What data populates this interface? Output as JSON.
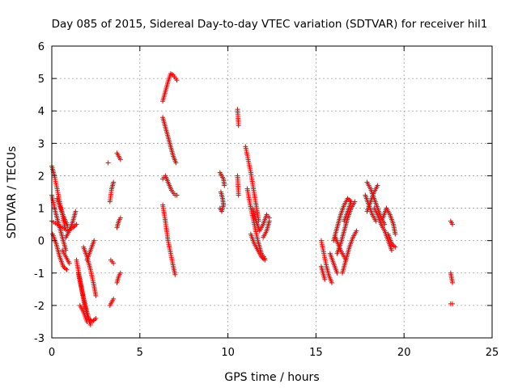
{
  "chart_data": {
    "type": "scatter",
    "title": "Day 085 of 2015, Sidereal Day-to-day VTEC variation (SDTVAR) for receiver hil1",
    "xlabel": "GPS time / hours",
    "ylabel": "SDTVAR / TECUs",
    "xlim": [
      0,
      25
    ],
    "ylim": [
      -3,
      6
    ],
    "xticks": [
      0,
      5,
      10,
      15,
      20,
      25
    ],
    "yticks": [
      -3,
      -2,
      -1,
      0,
      1,
      2,
      3,
      4,
      5,
      6
    ],
    "grid": true,
    "marker": "+",
    "color": "#ff0000",
    "segments": [
      [
        [
          0.0,
          2.3
        ],
        [
          0.15,
          2.0
        ],
        [
          0.3,
          1.6
        ],
        [
          0.45,
          1.2
        ],
        [
          0.6,
          0.8
        ],
        [
          0.75,
          0.4
        ]
      ],
      [
        [
          0.0,
          1.4
        ],
        [
          0.2,
          0.9
        ],
        [
          0.4,
          0.5
        ],
        [
          0.6,
          0.1
        ],
        [
          0.8,
          -0.3
        ]
      ],
      [
        [
          0.0,
          0.6
        ],
        [
          0.3,
          0.5
        ],
        [
          0.6,
          0.4
        ],
        [
          0.9,
          0.3
        ],
        [
          1.2,
          0.4
        ],
        [
          1.4,
          0.5
        ]
      ],
      [
        [
          0.05,
          0.2
        ],
        [
          0.25,
          -0.1
        ],
        [
          0.45,
          -0.5
        ],
        [
          0.65,
          -0.8
        ],
        [
          0.85,
          -0.9
        ]
      ],
      [
        [
          0.3,
          1.3
        ],
        [
          0.5,
          1.0
        ],
        [
          0.7,
          0.7
        ],
        [
          0.9,
          0.45
        ]
      ],
      [
        [
          0.8,
          0.1
        ],
        [
          1.0,
          0.3
        ],
        [
          1.2,
          0.6
        ],
        [
          1.35,
          0.9
        ]
      ],
      [
        [
          0.6,
          -0.3
        ],
        [
          0.8,
          -0.5
        ],
        [
          1.0,
          -0.7
        ]
      ],
      [
        [
          1.4,
          -0.6
        ],
        [
          1.6,
          -1.2
        ],
        [
          1.8,
          -1.8
        ],
        [
          2.0,
          -2.3
        ],
        [
          2.2,
          -2.6
        ]
      ],
      [
        [
          1.5,
          -1.0
        ],
        [
          1.7,
          -1.5
        ],
        [
          1.9,
          -2.0
        ],
        [
          2.1,
          -2.4
        ],
        [
          2.3,
          -2.5
        ],
        [
          2.5,
          -2.4
        ]
      ],
      [
        [
          1.6,
          -2.0
        ],
        [
          1.8,
          -2.2
        ],
        [
          2.0,
          -2.5
        ]
      ],
      [
        [
          1.8,
          -0.2
        ],
        [
          2.0,
          -0.5
        ],
        [
          2.2,
          -0.9
        ],
        [
          2.4,
          -1.4
        ],
        [
          2.5,
          -1.7
        ]
      ],
      [
        [
          2.0,
          -0.6
        ],
        [
          2.2,
          -0.3
        ],
        [
          2.4,
          0.0
        ]
      ],
      [
        [
          3.2,
          2.4
        ]
      ],
      [
        [
          3.3,
          1.2
        ],
        [
          3.4,
          1.6
        ],
        [
          3.5,
          1.8
        ]
      ],
      [
        [
          3.35,
          -0.6
        ],
        [
          3.5,
          -0.7
        ]
      ],
      [
        [
          3.3,
          -2.0
        ],
        [
          3.5,
          -1.8
        ]
      ],
      [
        [
          3.7,
          2.7
        ],
        [
          3.8,
          2.6
        ],
        [
          3.9,
          2.5
        ]
      ],
      [
        [
          3.7,
          0.4
        ],
        [
          3.8,
          0.6
        ],
        [
          3.9,
          0.7
        ]
      ],
      [
        [
          3.7,
          -1.3
        ],
        [
          3.8,
          -1.1
        ],
        [
          3.9,
          -1.0
        ]
      ],
      [
        [
          6.3,
          4.3
        ],
        [
          6.45,
          4.6
        ],
        [
          6.6,
          4.9
        ],
        [
          6.75,
          5.15
        ],
        [
          6.9,
          5.1
        ],
        [
          7.1,
          4.95
        ]
      ],
      [
        [
          6.3,
          3.8
        ],
        [
          6.45,
          3.5
        ],
        [
          6.6,
          3.2
        ],
        [
          6.75,
          2.9
        ],
        [
          6.9,
          2.6
        ],
        [
          7.05,
          2.4
        ]
      ],
      [
        [
          6.3,
          1.9
        ],
        [
          6.45,
          2.0
        ],
        [
          6.6,
          1.8
        ],
        [
          6.8,
          1.55
        ],
        [
          7.0,
          1.4
        ],
        [
          7.1,
          1.4
        ]
      ],
      [
        [
          6.3,
          1.1
        ],
        [
          6.45,
          0.6
        ],
        [
          6.6,
          0.0
        ],
        [
          6.75,
          -0.4
        ],
        [
          6.9,
          -0.8
        ],
        [
          7.0,
          -1.05
        ]
      ],
      [
        [
          9.55,
          2.1
        ],
        [
          9.65,
          2.0
        ],
        [
          9.75,
          1.9
        ],
        [
          9.8,
          1.7
        ]
      ],
      [
        [
          9.6,
          1.5
        ],
        [
          9.7,
          1.3
        ],
        [
          9.75,
          1.1
        ]
      ],
      [
        [
          9.55,
          1.0
        ],
        [
          9.65,
          0.9
        ],
        [
          9.75,
          1.1
        ]
      ],
      [
        [
          10.55,
          4.05
        ],
        [
          10.6,
          3.55
        ]
      ],
      [
        [
          10.55,
          2.0
        ],
        [
          10.6,
          1.4
        ]
      ],
      [
        [
          11.0,
          2.9
        ],
        [
          11.15,
          2.5
        ],
        [
          11.3,
          2.1
        ],
        [
          11.45,
          1.6
        ],
        [
          11.6,
          1.1
        ],
        [
          11.75,
          0.6
        ]
      ],
      [
        [
          11.1,
          1.6
        ],
        [
          11.3,
          1.0
        ],
        [
          11.5,
          0.5
        ],
        [
          11.7,
          0.0
        ],
        [
          11.9,
          -0.4
        ],
        [
          12.1,
          -0.55
        ]
      ],
      [
        [
          11.3,
          0.2
        ],
        [
          11.5,
          -0.1
        ],
        [
          11.7,
          -0.3
        ],
        [
          11.9,
          -0.5
        ],
        [
          12.1,
          -0.6
        ]
      ],
      [
        [
          11.4,
          1.0
        ],
        [
          11.6,
          0.6
        ],
        [
          11.8,
          0.3
        ],
        [
          12.0,
          0.5
        ],
        [
          12.2,
          0.8
        ],
        [
          12.35,
          0.7
        ]
      ],
      [
        [
          12.0,
          0.1
        ],
        [
          12.2,
          0.3
        ],
        [
          12.35,
          0.6
        ]
      ],
      [
        [
          15.3,
          0.0
        ],
        [
          15.45,
          -0.4
        ],
        [
          15.6,
          -0.8
        ],
        [
          15.75,
          -1.1
        ],
        [
          15.9,
          -1.3
        ]
      ],
      [
        [
          15.3,
          -0.8
        ],
        [
          15.4,
          -1.0
        ],
        [
          15.5,
          -1.2
        ]
      ],
      [
        [
          15.8,
          -0.4
        ],
        [
          16.0,
          -0.7
        ],
        [
          16.2,
          -1.0
        ]
      ],
      [
        [
          16.0,
          0.0
        ],
        [
          16.2,
          0.4
        ],
        [
          16.4,
          0.8
        ],
        [
          16.6,
          1.1
        ],
        [
          16.8,
          1.3
        ],
        [
          17.0,
          1.2
        ]
      ],
      [
        [
          16.2,
          -0.4
        ],
        [
          16.4,
          -0.1
        ],
        [
          16.6,
          0.3
        ],
        [
          16.8,
          0.7
        ],
        [
          17.0,
          1.0
        ],
        [
          17.2,
          1.2
        ]
      ],
      [
        [
          16.5,
          -1.0
        ],
        [
          16.7,
          -0.6
        ],
        [
          16.9,
          -0.2
        ],
        [
          17.1,
          0.1
        ],
        [
          17.3,
          0.3
        ]
      ],
      [
        [
          16.1,
          0.1
        ],
        [
          16.4,
          -0.3
        ],
        [
          16.7,
          -0.6
        ]
      ],
      [
        [
          16.6,
          0.6
        ],
        [
          16.8,
          0.9
        ],
        [
          17.0,
          1.2
        ]
      ],
      [
        [
          17.9,
          1.8
        ],
        [
          18.1,
          1.6
        ],
        [
          18.3,
          1.3
        ],
        [
          18.5,
          1.0
        ],
        [
          18.7,
          0.7
        ],
        [
          18.9,
          0.5
        ]
      ],
      [
        [
          17.8,
          1.4
        ],
        [
          18.0,
          1.1
        ],
        [
          18.2,
          0.8
        ],
        [
          18.4,
          0.6
        ]
      ],
      [
        [
          18.3,
          1.0
        ],
        [
          18.5,
          0.8
        ],
        [
          18.7,
          0.5
        ],
        [
          18.9,
          0.3
        ],
        [
          19.1,
          0.0
        ],
        [
          19.3,
          -0.3
        ]
      ],
      [
        [
          18.8,
          0.7
        ],
        [
          19.0,
          1.0
        ],
        [
          19.2,
          0.8
        ],
        [
          19.4,
          0.5
        ],
        [
          19.5,
          0.2
        ]
      ],
      [
        [
          19.1,
          0.2
        ],
        [
          19.3,
          -0.1
        ],
        [
          19.5,
          -0.2
        ]
      ],
      [
        [
          17.9,
          0.9
        ],
        [
          18.1,
          1.2
        ],
        [
          18.3,
          1.5
        ],
        [
          18.5,
          1.7
        ]
      ],
      [
        [
          22.65,
          0.6
        ],
        [
          22.75,
          0.5
        ]
      ],
      [
        [
          22.65,
          -1.0
        ],
        [
          22.7,
          -1.15
        ],
        [
          22.75,
          -1.3
        ]
      ],
      [
        [
          22.65,
          -1.95
        ],
        [
          22.75,
          -1.95
        ]
      ]
    ]
  }
}
